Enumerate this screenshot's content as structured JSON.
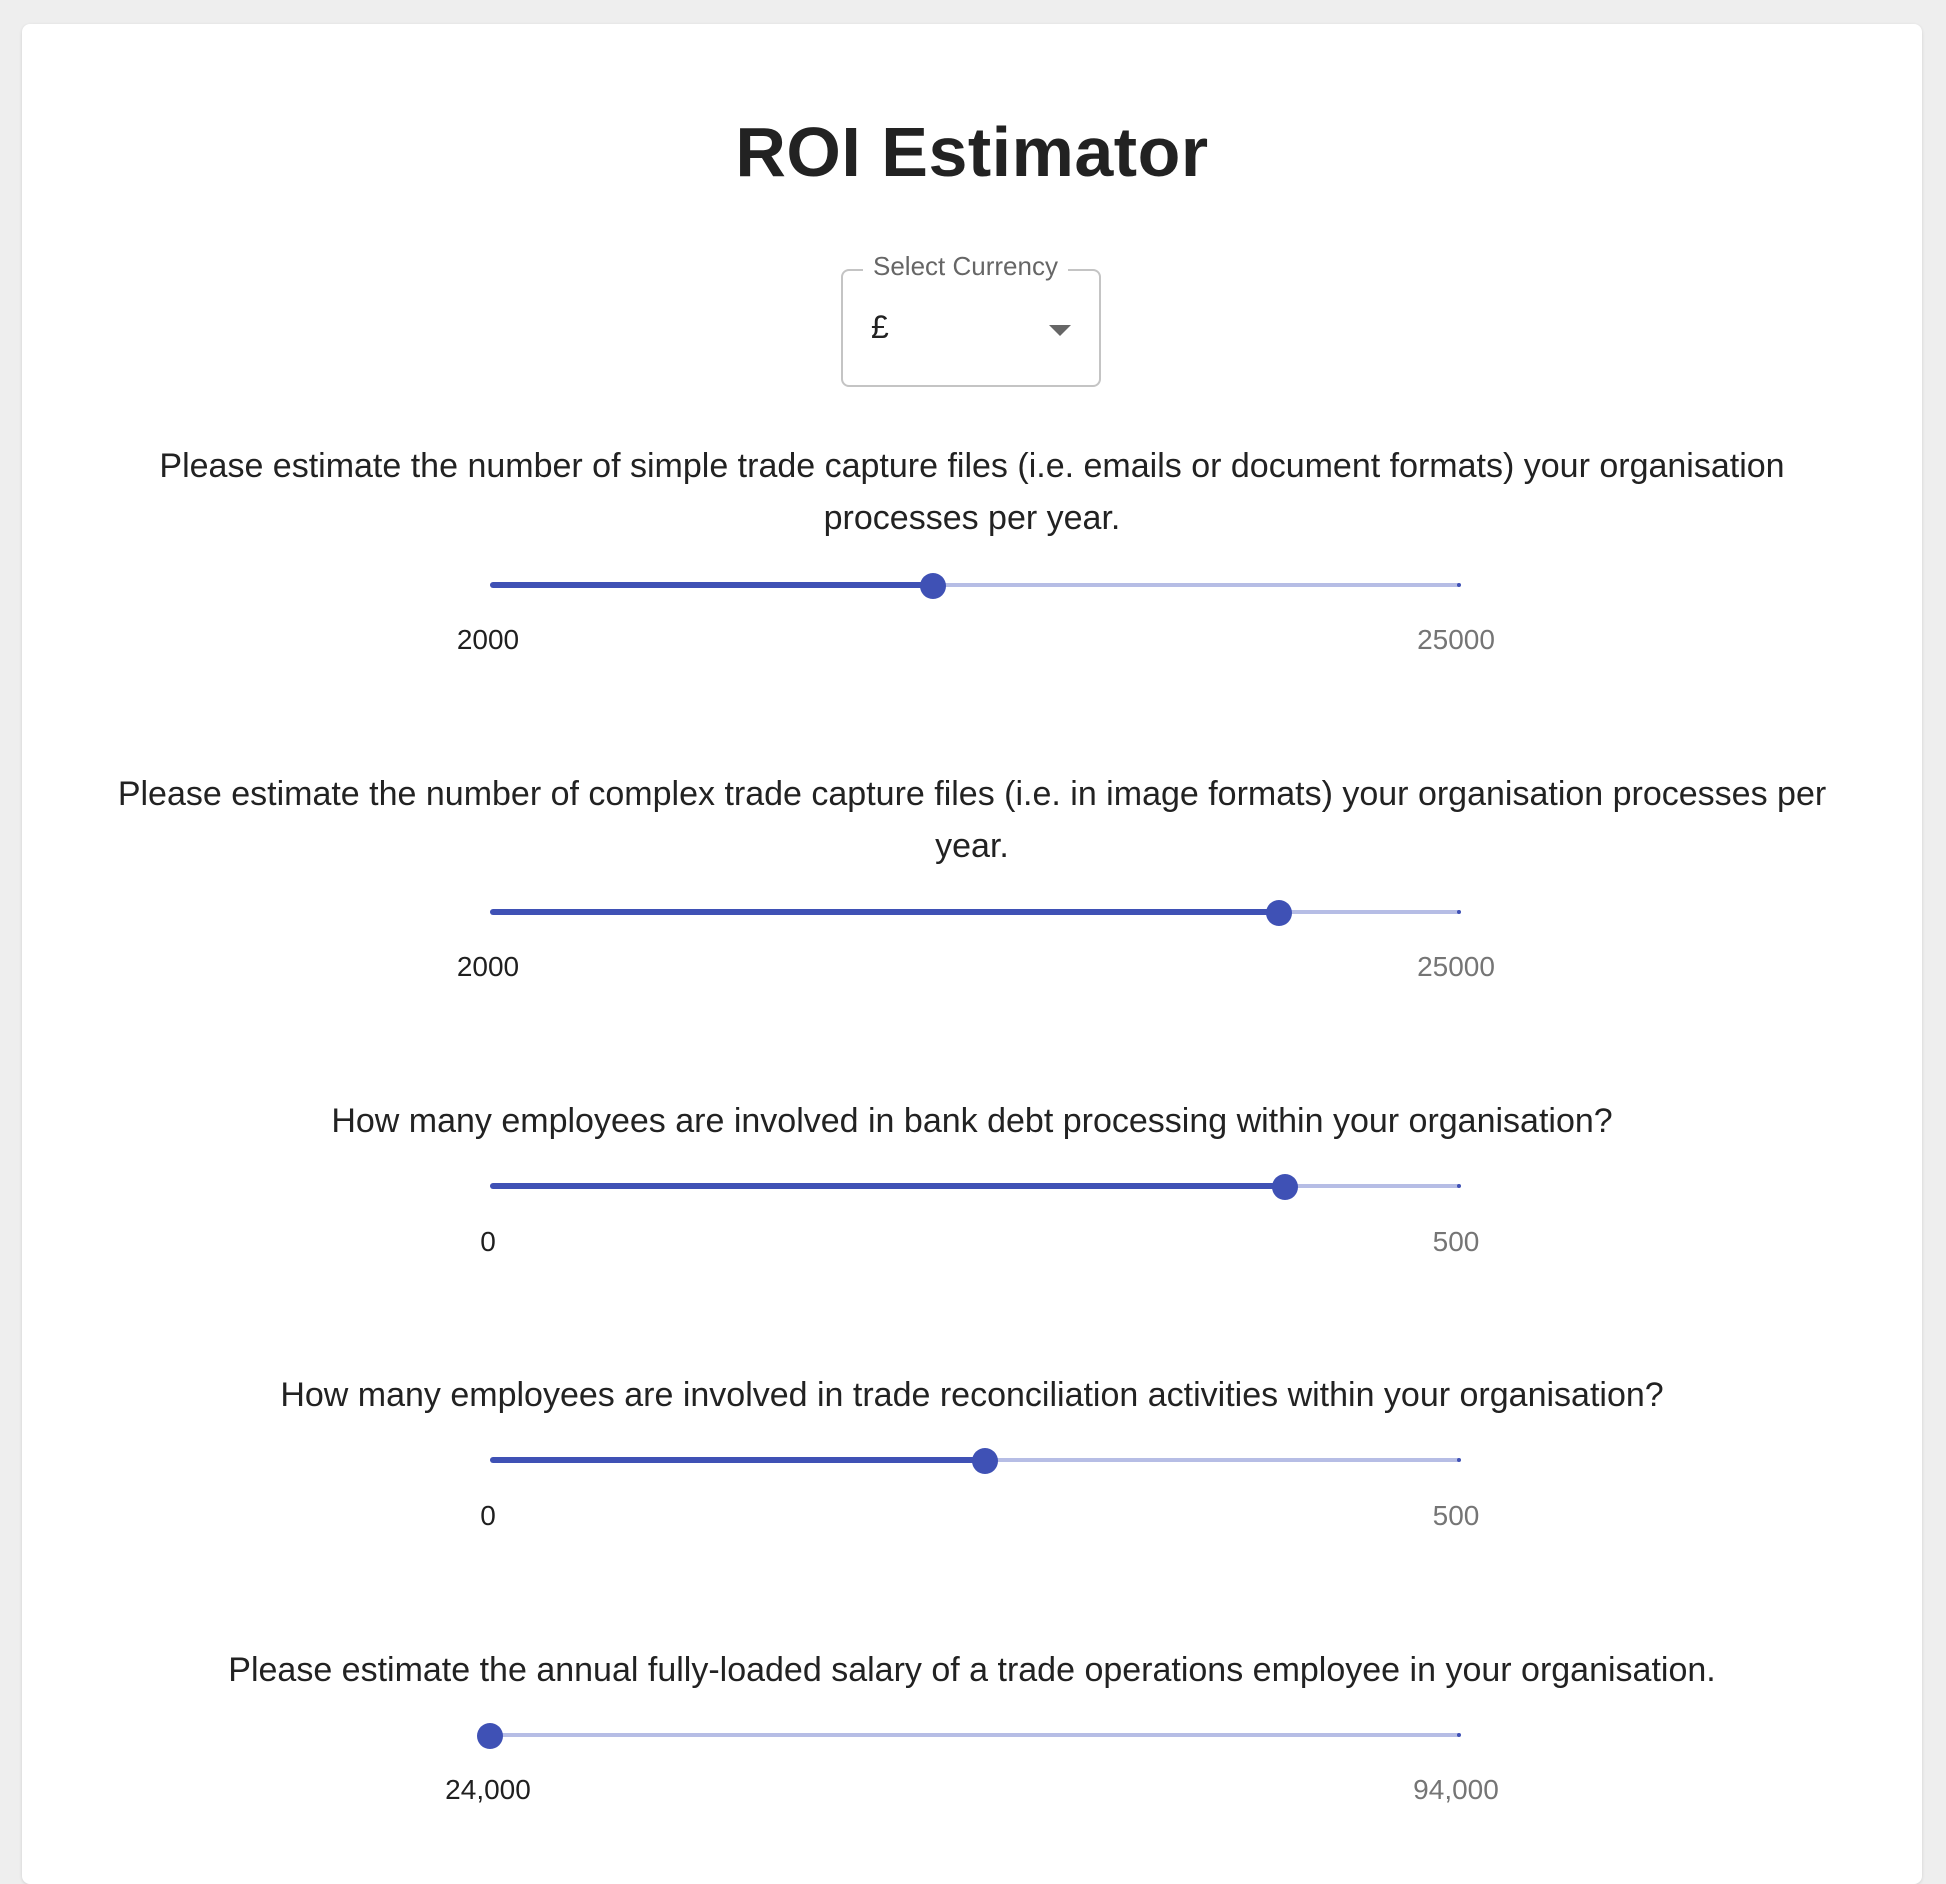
{
  "app": {
    "title": "ROI Estimator"
  },
  "currency": {
    "label": "Select Currency",
    "value": "£",
    "caret_icon": "arrow-drop-down-icon"
  },
  "colors": {
    "accent": "#3f51b5",
    "rail": "#b6bde5"
  },
  "sliders": [
    {
      "question": "Please estimate the number of simple trade capture files (i.e. emails or document formats) your organisation processes per year.",
      "min_label": "2000",
      "max_label": "25000",
      "min": 2000,
      "max": 25000,
      "value": 12500
    },
    {
      "question": "Please estimate the number of complex trade capture files (i.e. in image formats) your organisation processes per year.",
      "min_label": "2000",
      "max_label": "25000",
      "min": 2000,
      "max": 25000,
      "value": 20700
    },
    {
      "question": "How many employees are involved in bank debt processing within your organisation?",
      "min_label": "0",
      "max_label": "500",
      "min": 0,
      "max": 500,
      "value": 410
    },
    {
      "question": "How many employees are involved in trade reconciliation activities within your organisation?",
      "min_label": "0",
      "max_label": "500",
      "min": 0,
      "max": 500,
      "value": 255
    },
    {
      "question": "Please estimate the annual fully-loaded salary of a trade operations employee in your organisation.",
      "min_label": "24,000",
      "max_label": "94,000",
      "min": 24000,
      "max": 94000,
      "value": 24000
    }
  ]
}
